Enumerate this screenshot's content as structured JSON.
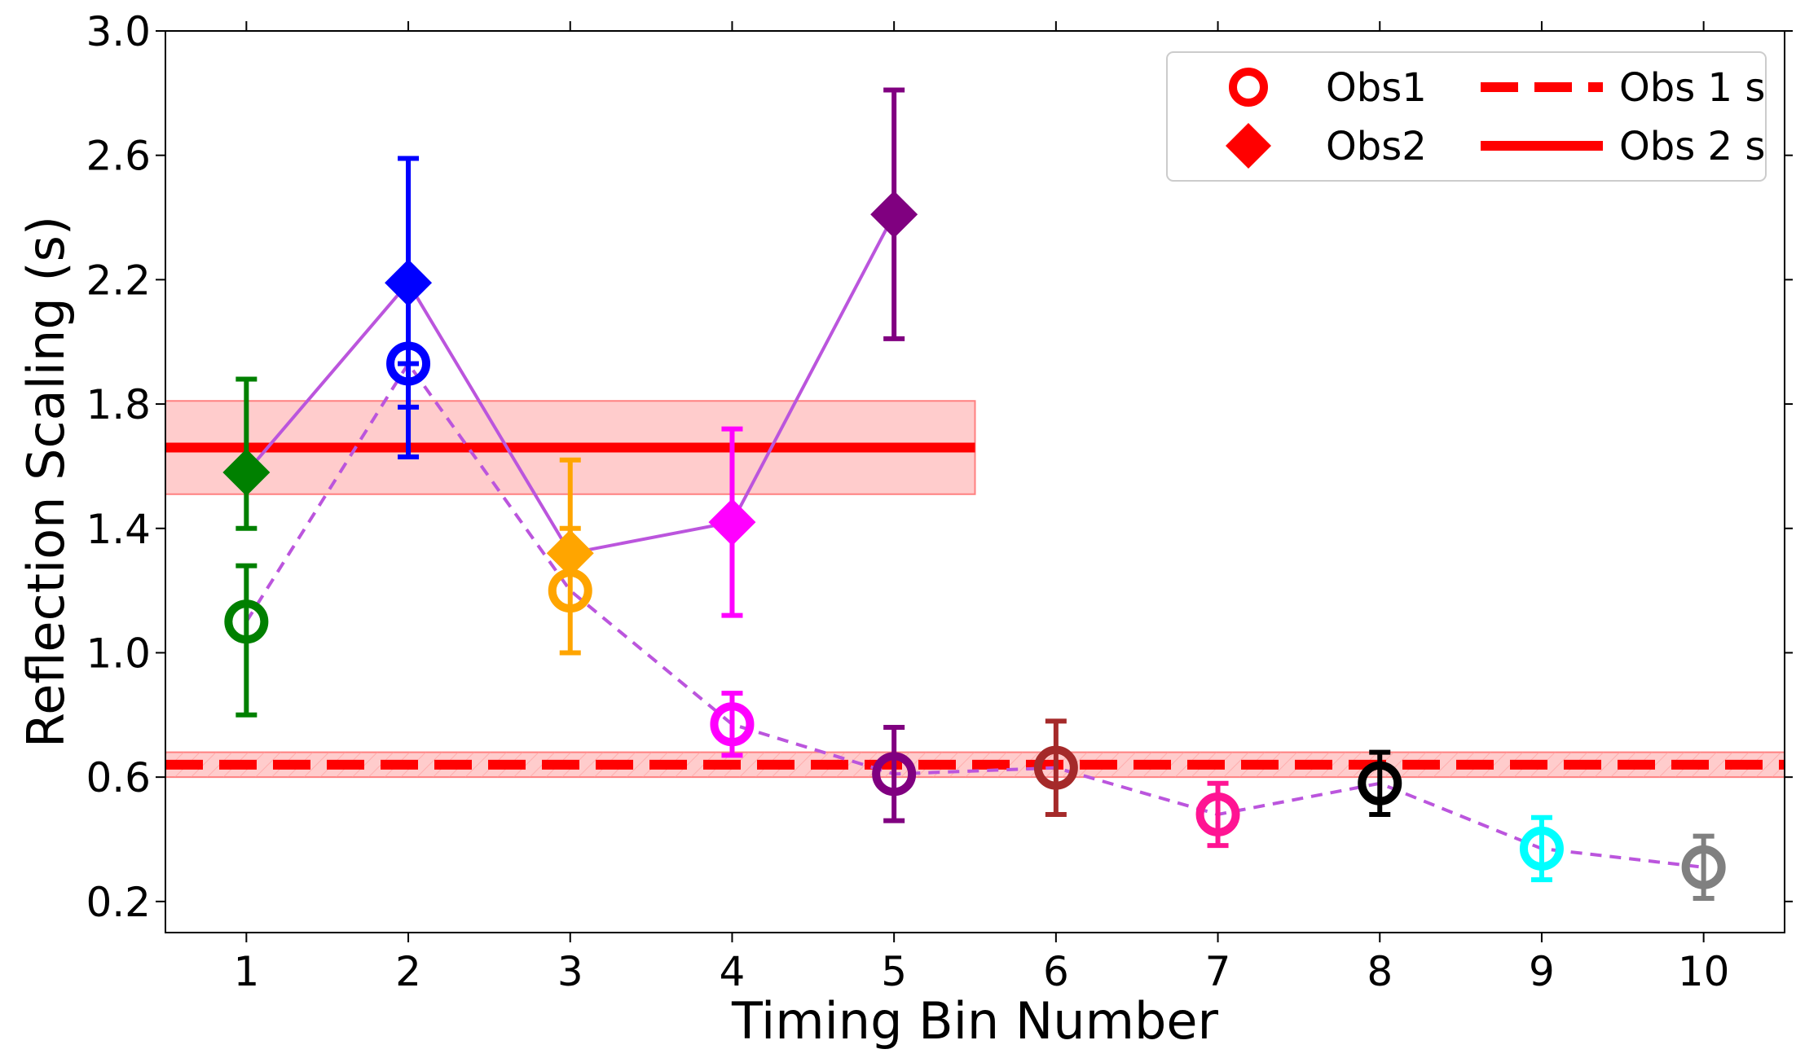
{
  "chart_data": {
    "type": "scatter",
    "xlabel": "Timing Bin Number",
    "ylabel": "Reflection Scaling (s)",
    "xlim": [
      0.5,
      10.5
    ],
    "ylim": [
      0.1,
      3.0
    ],
    "xticks": [
      1,
      2,
      3,
      4,
      5,
      6,
      7,
      8,
      9,
      10
    ],
    "xtick_labels": [
      "1",
      "2",
      "3",
      "4",
      "5",
      "6",
      "7",
      "8",
      "9",
      "10"
    ],
    "yticks": [
      0.2,
      0.6,
      1.0,
      1.4,
      1.8,
      2.2,
      2.6,
      3.0
    ],
    "ytick_labels": [
      "0.2",
      "0.6",
      "1.0",
      "1.4",
      "1.8",
      "2.2",
      "2.6",
      "3.0"
    ],
    "bin_colors": [
      "#008000",
      "#0000ff",
      "#ffa500",
      "#ff00ff",
      "#800080",
      "#a52a2a",
      "#ff1493",
      "#000000",
      "#00ffff",
      "#808080"
    ],
    "series": [
      {
        "name": "Obs1",
        "marker": "open-circle",
        "x": [
          1,
          2,
          3,
          4,
          5,
          6,
          7,
          8,
          9,
          10
        ],
        "y": [
          1.1,
          1.93,
          1.2,
          0.77,
          0.61,
          0.63,
          0.48,
          0.58,
          0.37,
          0.31
        ],
        "yerr_low": [
          0.3,
          0.14,
          0.2,
          0.1,
          0.15,
          0.15,
          0.1,
          0.1,
          0.1,
          0.1
        ],
        "yerr_high": [
          0.18,
          0.0,
          0.2,
          0.1,
          0.15,
          0.15,
          0.1,
          0.1,
          0.1,
          0.1
        ],
        "line_color": "#bb55dd",
        "line_style": "dashed"
      },
      {
        "name": "Obs2",
        "marker": "filled-diamond",
        "x": [
          1,
          2,
          3,
          4,
          5
        ],
        "y": [
          1.58,
          2.19,
          1.32,
          1.42,
          2.41
        ],
        "yerr_low": [
          0.18,
          0.56,
          0.0,
          0.3,
          0.4
        ],
        "yerr_high": [
          0.3,
          0.4,
          0.3,
          0.3,
          0.4
        ],
        "line_color": "#bb55dd",
        "line_style": "solid"
      }
    ],
    "reference_lines": [
      {
        "name": "Obs 1 s",
        "y": 0.64,
        "band": [
          0.6,
          0.68
        ],
        "x_range": [
          0.5,
          10.5
        ],
        "style": "dashed",
        "color": "#ff0000"
      },
      {
        "name": "Obs 2 s",
        "y": 1.66,
        "band": [
          1.51,
          1.81
        ],
        "x_range": [
          0.5,
          5.5
        ],
        "style": "solid",
        "color": "#ff0000"
      }
    ],
    "legend": {
      "position": "top-right",
      "entries": [
        {
          "label": "Obs1",
          "kind": "open-circle",
          "color": "#ff0000"
        },
        {
          "label": "Obs 1 s",
          "kind": "dashed-line",
          "color": "#ff0000"
        },
        {
          "label": "Obs2",
          "kind": "filled-diamond",
          "color": "#ff0000"
        },
        {
          "label": "Obs 2 s",
          "kind": "solid-line",
          "color": "#ff0000"
        }
      ]
    }
  }
}
